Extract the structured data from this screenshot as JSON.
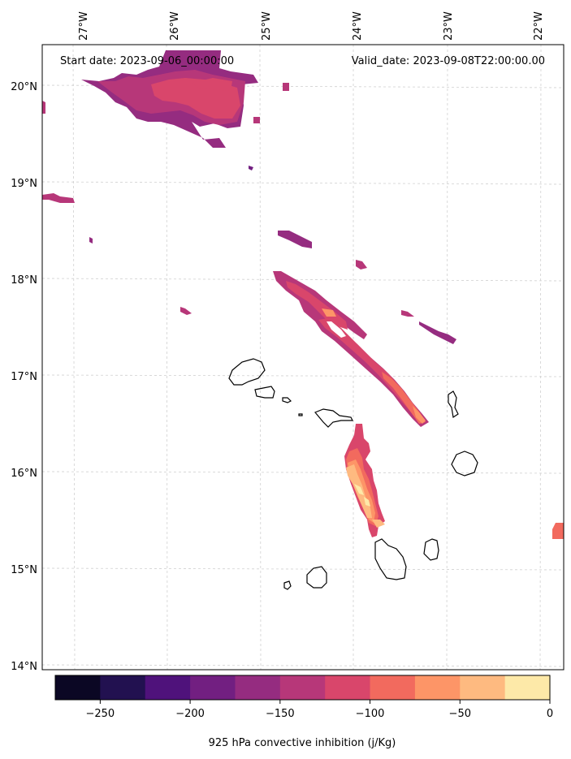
{
  "header": {
    "start_date": "Start date: 2023-09-06_00:00:00",
    "valid_date": "Valid_date: 2023-09-08T22:00:00.00"
  },
  "map": {
    "lon_labels": [
      "27°W",
      "26°W",
      "25°W",
      "24°W",
      "23°W",
      "22°W"
    ],
    "lat_labels": [
      "20°N",
      "19°N",
      "18°N",
      "17°N",
      "16°N",
      "15°N",
      "14°N"
    ],
    "gridlines": true
  },
  "colorbar": {
    "title": "925 hPa convective inhibition (j/Kg)",
    "tick_labels": [
      "−250",
      "−200",
      "−150",
      "−100",
      "−50",
      "0"
    ],
    "range": [
      -275,
      0
    ],
    "colors": [
      "#0b0724",
      "#221150",
      "#4f127b",
      "#721f81",
      "#952c80",
      "#b73779",
      "#d9466b",
      "#f26a5e",
      "#fd9567",
      "#feba80",
      "#fde9a8"
    ]
  },
  "chart_data": {
    "type": "heatmap",
    "title": "",
    "variable": "925 hPa convective inhibition (j/Kg)",
    "lon_range": [
      -27.35,
      -21.8
    ],
    "lat_range": [
      13.95,
      20.45
    ],
    "value_range": [
      -275,
      0
    ],
    "regions": [
      {
        "label": "northwest band",
        "value_min": -175,
        "value_max": -125
      },
      {
        "label": "central diagonal band",
        "value_min": -175,
        "value_max": -60
      },
      {
        "label": "southern band",
        "value_min": -125,
        "value_max": -25
      },
      {
        "label": "eastern edge patch",
        "value_min": -100,
        "value_max": -75
      }
    ]
  }
}
